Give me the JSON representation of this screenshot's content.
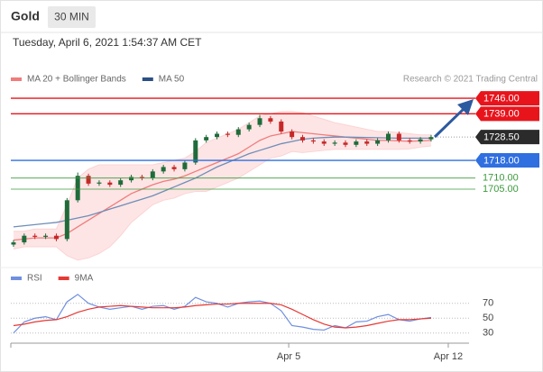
{
  "header": {
    "title": "Gold",
    "interval": "30 MIN",
    "datetime": "Tuesday, April 6, 2021 1:54:37 AM CET",
    "source": "Research © 2021 Trading Central"
  },
  "chart_data": [
    {
      "type": "candlestick",
      "xlim": [
        -0.25,
        42.54
      ],
      "ylim": [
        1672.5,
        1749.7
      ],
      "candles": {
        "up_color": "#1f6b3a",
        "down_color": "#c62828",
        "open": [
          1680,
          1681,
          1684,
          1683.5,
          1684,
          1682.5,
          1700,
          1711,
          1707.5,
          1708,
          1707,
          1709,
          1710.5,
          1710,
          1713,
          1715,
          1714,
          1717,
          1727,
          1728.5,
          1730,
          1729.5,
          1732,
          1734,
          1737,
          1735.5,
          1731,
          1728.5,
          1727,
          1726.5,
          1725.5,
          1726,
          1725,
          1726.5,
          1725.5,
          1727,
          1730,
          1727,
          1726.5,
          1727.5
        ],
        "high": [
          1682,
          1685,
          1685,
          1685,
          1685,
          1701,
          1712.5,
          1712,
          1709,
          1709,
          1710,
          1711.5,
          1711.5,
          1714,
          1716,
          1716,
          1718,
          1728,
          1729.5,
          1731,
          1731,
          1733,
          1735,
          1738.5,
          1738,
          1736.5,
          1732,
          1729.5,
          1728,
          1727.5,
          1727,
          1727,
          1727.5,
          1727.5,
          1728,
          1731,
          1731,
          1728,
          1728.5,
          1729.5
        ],
        "low": [
          1679,
          1680,
          1682.5,
          1682.5,
          1681.5,
          1681.5,
          1699,
          1706.5,
          1706.5,
          1706,
          1706,
          1708,
          1709,
          1709,
          1712,
          1713,
          1713,
          1716,
          1726,
          1727.5,
          1728.5,
          1728.5,
          1731,
          1733,
          1734.5,
          1730,
          1727.5,
          1726,
          1725.5,
          1724.5,
          1724.5,
          1724,
          1724,
          1724.5,
          1724.5,
          1726,
          1726,
          1725.5,
          1725.5,
          1726.5
        ],
        "close": [
          1681,
          1684,
          1683.5,
          1684,
          1682.5,
          1700,
          1711,
          1707.5,
          1708,
          1707,
          1709,
          1710.5,
          1710,
          1713,
          1715,
          1714,
          1717,
          1727,
          1728.5,
          1730,
          1729.5,
          1732,
          1734,
          1737,
          1735.5,
          1731,
          1728.5,
          1727,
          1726.5,
          1725.5,
          1726,
          1725,
          1726.5,
          1725.5,
          1727,
          1730,
          1727,
          1726.5,
          1727.5,
          1728.5
        ]
      },
      "series": [
        {
          "name": "MA 20 + Bollinger Bands",
          "color": "#f07c7c",
          "band_color": "#fcd3d3",
          "values": [
            1682,
            1682.5,
            1683,
            1683,
            1683,
            1685,
            1688,
            1691,
            1694,
            1697,
            1700,
            1703,
            1705,
            1707,
            1708.5,
            1709.5,
            1711,
            1713,
            1715,
            1717,
            1719,
            1721,
            1724,
            1727,
            1729,
            1730,
            1731,
            1730.5,
            1730,
            1729.5,
            1729,
            1728.5,
            1728,
            1727.5,
            1727,
            1727,
            1726.8,
            1726.6,
            1726.8,
            1727
          ],
          "upper": [
            1686,
            1686,
            1687,
            1687,
            1687,
            1698,
            1710,
            1714,
            1716,
            1716,
            1716,
            1716,
            1716,
            1716,
            1717,
            1718,
            1719,
            1722,
            1726,
            1728,
            1730,
            1732,
            1735,
            1738,
            1739,
            1740,
            1740,
            1739.5,
            1738,
            1736.5,
            1735,
            1734,
            1733,
            1732,
            1731,
            1731,
            1730.5,
            1730,
            1729.5,
            1729.5
          ],
          "lower": [
            1678,
            1679,
            1679,
            1679,
            1679,
            1675,
            1673,
            1674,
            1676,
            1679,
            1684,
            1690,
            1694,
            1698,
            1700,
            1701,
            1703,
            1704,
            1704,
            1706,
            1708,
            1710,
            1713,
            1716,
            1719,
            1720,
            1722,
            1721.5,
            1722,
            1722.5,
            1723,
            1723,
            1723,
            1723,
            1723,
            1723,
            1723,
            1723.2,
            1724,
            1724.5
          ]
        },
        {
          "name": "MA 50",
          "color": "#6f8db8",
          "legend_color": "#2c4f85",
          "values": [
            1688,
            1688.5,
            1689,
            1689.5,
            1690,
            1691,
            1692,
            1693,
            1694.5,
            1696,
            1697.5,
            1699,
            1700.5,
            1702,
            1704,
            1706,
            1708,
            1710,
            1712.5,
            1715,
            1717,
            1719,
            1721,
            1722.5,
            1724,
            1725.5,
            1726.5,
            1727.5,
            1728,
            1728.3,
            1728.5,
            1728.5,
            1728.4,
            1728.3,
            1728.2,
            1728.1,
            1728,
            1728,
            1728,
            1728
          ]
        }
      ],
      "levels": [
        {
          "value": 1746,
          "label": "1746.00",
          "color": "#e8141c",
          "style": "box"
        },
        {
          "value": 1739,
          "label": "1739.00",
          "color": "#e8141c",
          "style": "box"
        },
        {
          "value": 1728.5,
          "label": "1728.50",
          "color": "#2b2b2b",
          "style": "current"
        },
        {
          "value": 1718,
          "label": "1718.00",
          "color": "#2f6fe0",
          "style": "box"
        },
        {
          "value": 1710,
          "label": "1710.00",
          "color": "#3d9a3d",
          "style": "text"
        },
        {
          "value": 1705,
          "label": "1705.00",
          "color": "#3d9a3d",
          "style": "text"
        }
      ]
    },
    {
      "type": "line",
      "xlim": [
        -0.25,
        42.54
      ],
      "ylim": [
        20,
        100
      ],
      "yticks": [
        70,
        50,
        30
      ],
      "grid": true,
      "xticks": [
        {
          "value": 25.7,
          "label": "Apr 5"
        },
        {
          "value": 40.6,
          "label": "Apr 12"
        }
      ],
      "series": [
        {
          "name": "RSI",
          "color": "#6f8fe0",
          "values": [
            30,
            45,
            50,
            52,
            48,
            72,
            82,
            70,
            65,
            62,
            64,
            66,
            62,
            66,
            67,
            62,
            66,
            78,
            72,
            70,
            65,
            70,
            72,
            73,
            70,
            60,
            40,
            38,
            35,
            34,
            40,
            37,
            45,
            46,
            52,
            55,
            48,
            46,
            49,
            51
          ]
        },
        {
          "name": "9MA",
          "color": "#e53935",
          "values": [
            40,
            42,
            45,
            47,
            48,
            52,
            58,
            62,
            65,
            66,
            67,
            66,
            65,
            64,
            64,
            64,
            65,
            67,
            68,
            69,
            69,
            70,
            70,
            70,
            70,
            68,
            62,
            55,
            48,
            42,
            38,
            37,
            38,
            40,
            43,
            46,
            48,
            48,
            49,
            50
          ]
        }
      ]
    }
  ]
}
